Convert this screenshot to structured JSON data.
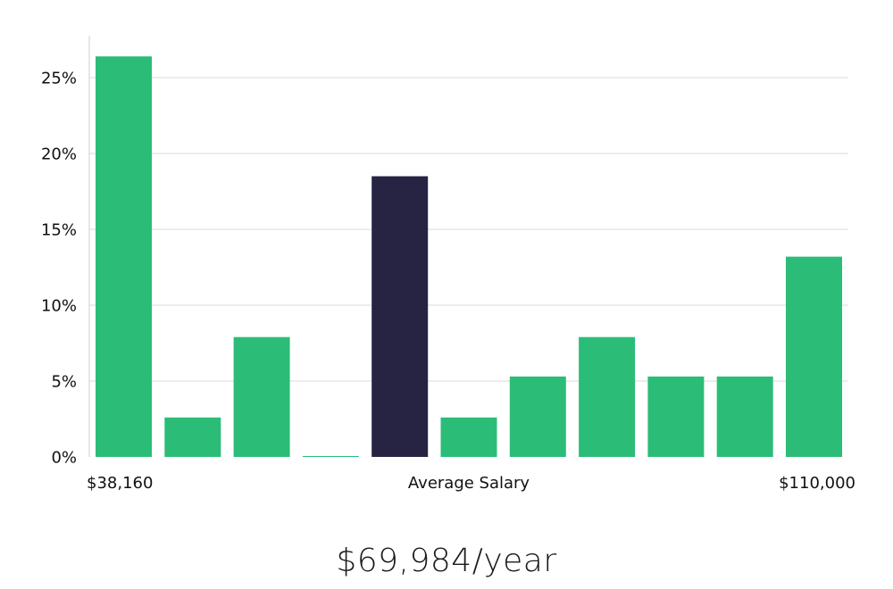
{
  "chart_data": {
    "type": "bar",
    "title": "",
    "xlabel": "",
    "ylabel": "",
    "ylim": [
      0,
      27.5
    ],
    "yticks": [
      0,
      5,
      10,
      15,
      20,
      25
    ],
    "ytick_labels": [
      "0%",
      "5%",
      "10%",
      "15%",
      "20%",
      "25%"
    ],
    "values": [
      26.4,
      2.6,
      7.9,
      0.05,
      18.5,
      2.6,
      5.3,
      7.9,
      5.3,
      5.3,
      13.2
    ],
    "highlight_index": 4,
    "x_labels": {
      "min": "$38,160",
      "center": "Average Salary",
      "max": "$110,000"
    },
    "colors": {
      "bar": "#2bbd77",
      "highlight": "#272343",
      "grid": "#d9d9d9",
      "axis": "#cccccc"
    }
  },
  "summary": {
    "average_salary": "$69,984/year"
  }
}
